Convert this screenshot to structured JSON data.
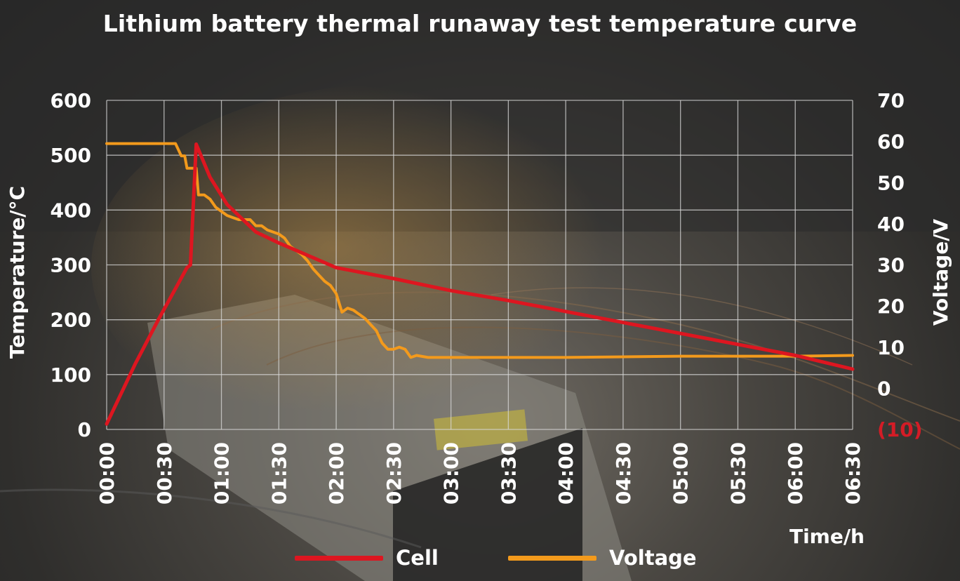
{
  "colors": {
    "cell": "#dd1620",
    "voltage": "#f39a1c",
    "grid": "#d9d9d9",
    "negative_tick": "#d41c26"
  },
  "chart_data": {
    "type": "line",
    "title": "Lithium battery thermal runaway test temperature curve",
    "xlabel": "Time/h",
    "ylabel": "Temperature/°C",
    "y2label": "Voltage/V",
    "x_ticks": [
      "00:00",
      "00:30",
      "01:00",
      "01:30",
      "02:00",
      "02:30",
      "03:00",
      "03:30",
      "04:00",
      "04:30",
      "05:00",
      "05:30",
      "06:00",
      "06:30"
    ],
    "y_ticks": [
      "0",
      "100",
      "200",
      "300",
      "400",
      "500",
      "600"
    ],
    "y2_ticks": [
      "(10)",
      "0",
      "10",
      "20",
      "30",
      "40",
      "50",
      "60",
      "70"
    ],
    "ylim": [
      0,
      600
    ],
    "y2lim": [
      -10,
      70
    ],
    "xlim_hours": [
      0,
      6.5
    ],
    "grid": true,
    "legend_position": "bottom",
    "series": [
      {
        "name": "Cell",
        "axis": "left",
        "x": [
          0.0,
          0.25,
          0.45,
          0.7,
          0.73,
          0.78,
          0.9,
          1.05,
          1.3,
          1.5,
          2.0,
          2.5,
          3.0,
          3.5,
          4.0,
          4.5,
          5.0,
          5.5,
          6.0,
          6.5
        ],
        "y": [
          10,
          120,
          200,
          295,
          300,
          520,
          460,
          410,
          360,
          340,
          295,
          275,
          253,
          235,
          215,
          195,
          175,
          155,
          135,
          110
        ]
      },
      {
        "name": "Voltage",
        "axis": "right",
        "x": [
          0.0,
          0.55,
          0.6,
          0.65,
          0.68,
          0.7,
          0.73,
          0.78,
          0.8,
          0.85,
          0.9,
          0.95,
          1.0,
          1.05,
          1.1,
          1.15,
          1.2,
          1.25,
          1.3,
          1.35,
          1.4,
          1.45,
          1.5,
          1.55,
          1.6,
          1.65,
          1.7,
          1.75,
          1.8,
          1.85,
          1.9,
          1.95,
          2.0,
          2.05,
          2.1,
          2.15,
          2.2,
          2.25,
          2.3,
          2.35,
          2.4,
          2.45,
          2.5,
          2.55,
          2.6,
          2.65,
          2.7,
          2.8,
          3.0,
          4.0,
          5.0,
          6.0,
          6.5
        ],
        "y": [
          59.5,
          59.5,
          59.5,
          56.5,
          56.5,
          53.5,
          53.5,
          53.5,
          47,
          47,
          46,
          44,
          43,
          42,
          41.5,
          41,
          41,
          41,
          39.5,
          39.5,
          38.5,
          38,
          37.5,
          36.5,
          34.5,
          33.5,
          32.5,
          31,
          29,
          27.5,
          26,
          25,
          23,
          18.5,
          19.5,
          19,
          18,
          17,
          15.5,
          14,
          11,
          9.5,
          9.5,
          10,
          9.5,
          7.5,
          8,
          7.5,
          7.5,
          7.5,
          7.8,
          7.8,
          8
        ]
      }
    ]
  }
}
